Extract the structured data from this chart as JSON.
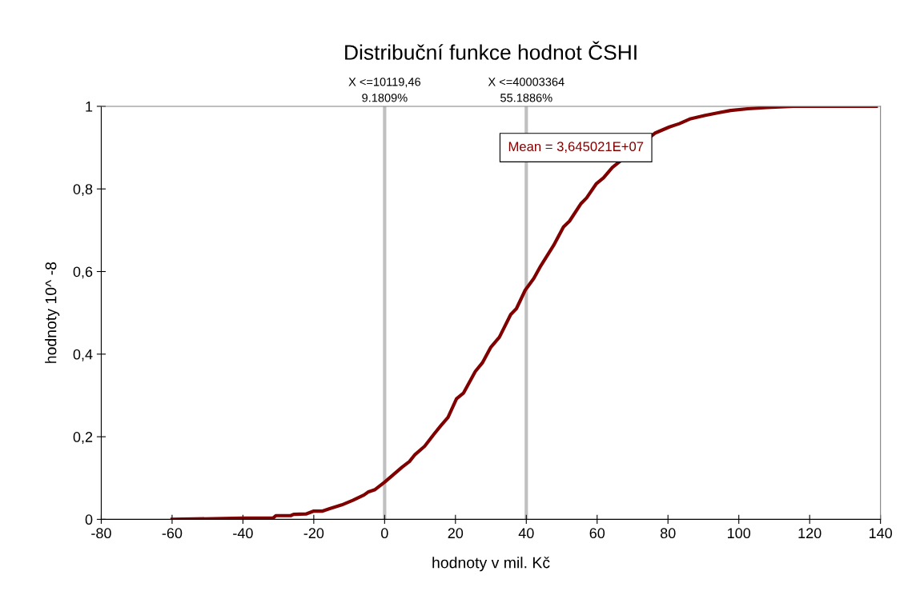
{
  "chart_data": {
    "type": "line",
    "title": "Distribuční funkce hodnot ČSHI",
    "xlabel": "hodnoty v mil. Kč",
    "ylabel": "hodnoty 10^ -8",
    "series": [
      {
        "color": "#800000",
        "x": [
          -60,
          -40,
          -31.5,
          -30.7,
          -26.5,
          -25.7,
          -22.2,
          -20,
          -17.5,
          -15.5,
          -12.1,
          -9,
          -5.8,
          -4.7,
          -2.7,
          0,
          2.7,
          5,
          7,
          8.6,
          11.3,
          14,
          15.9,
          17.9,
          20.3,
          22.3,
          25.6,
          27.6,
          30,
          32.4,
          35.6,
          37.2,
          39.7,
          42.1,
          44.1,
          47.7,
          50.5,
          52.2,
          55.4,
          57,
          59.8,
          61.8,
          64.3,
          76.3,
          80.4,
          83.2,
          86.4,
          90.5,
          94.5,
          97.7,
          102.5,
          107.8,
          115.4,
          138.8
        ],
        "values": [
          0,
          0.003,
          0.003,
          0.009,
          0.009,
          0.012,
          0.013,
          0.02,
          0.02,
          0.026,
          0.035,
          0.046,
          0.059,
          0.066,
          0.072,
          0.09,
          0.11,
          0.127,
          0.14,
          0.157,
          0.177,
          0.207,
          0.227,
          0.247,
          0.292,
          0.306,
          0.358,
          0.379,
          0.417,
          0.441,
          0.496,
          0.51,
          0.555,
          0.583,
          0.614,
          0.663,
          0.708,
          0.722,
          0.764,
          0.778,
          0.813,
          0.827,
          0.852,
          0.935,
          0.95,
          0.958,
          0.97,
          0.978,
          0.985,
          0.99,
          0.994,
          0.997,
          1.0,
          1.0
        ]
      }
    ],
    "xlim": [
      -80,
      140
    ],
    "xticks": [
      -80,
      -60,
      -40,
      -20,
      0,
      20,
      40,
      60,
      80,
      100,
      120,
      140
    ],
    "ylim": [
      0,
      1
    ],
    "yticks": [
      0,
      {
        "value": 0.2,
        "label": "0,2"
      },
      {
        "value": 0.4,
        "label": "0,4"
      },
      {
        "value": 0.6,
        "label": "0,6"
      },
      {
        "value": 0.8,
        "label": "0,8"
      },
      1
    ],
    "ref_lines": [
      {
        "axis": "x",
        "value": 0.01011946,
        "label": "X <=10119,46\n9.1809%",
        "color": "#c0c0c0"
      },
      {
        "axis": "x",
        "value": 40.003364,
        "label": "X <=40003364\n55.1886%",
        "color": "#c0c0c0"
      }
    ],
    "annotations": [
      "Mean = 3,645021E+07"
    ],
    "grid": false,
    "legend": false,
    "marker": "none",
    "line_style": "solid"
  }
}
